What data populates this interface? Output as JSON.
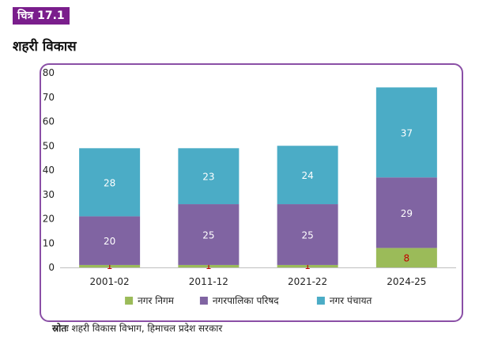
{
  "figure_label": "चित्र 17.1",
  "title": "शहरी विकास",
  "source_label": "स्रोतः",
  "source_text": "शहरी विकास विभाग, हिमाचल प्रदेश सरकार",
  "chart_data": {
    "type": "bar",
    "stacked": true,
    "categories": [
      "2001-02",
      "2011-12",
      "2021-22",
      "2024-25"
    ],
    "series": [
      {
        "name": "नगर निगम",
        "values": [
          1,
          1,
          1,
          8
        ],
        "color": "#9bbb59",
        "label_color": "#c00000"
      },
      {
        "name": "नगरपालिका परिषद",
        "values": [
          20,
          25,
          25,
          29
        ],
        "color": "#8064a2",
        "label_color": "#ffffff"
      },
      {
        "name": "नगर पंचायत",
        "values": [
          28,
          23,
          24,
          37
        ],
        "color": "#4bacc6",
        "label_color": "#ffffff"
      }
    ],
    "yticks": [
      0,
      10,
      20,
      30,
      40,
      50,
      60,
      70,
      80
    ],
    "ylim": [
      0,
      80
    ],
    "grid": false,
    "legend": "bottom"
  }
}
